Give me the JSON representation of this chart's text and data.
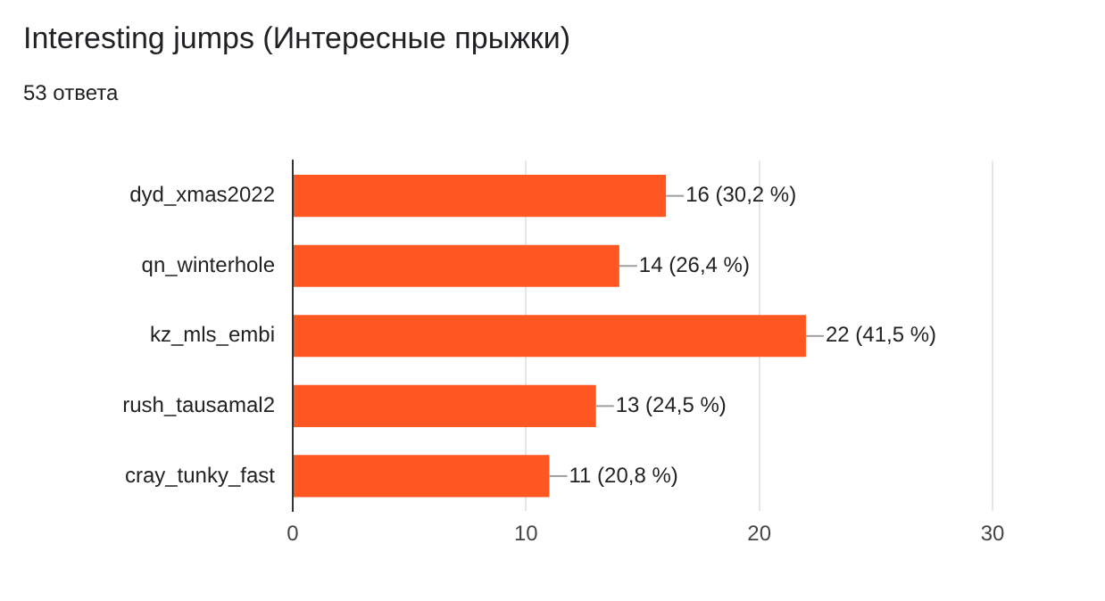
{
  "chart_data": {
    "type": "bar",
    "orientation": "horizontal",
    "title": "Interesting jumps (Интересные прыжки)",
    "subtitle": "53 ответа",
    "categories": [
      "dyd_xmas2022",
      "qn_winterhole",
      "kz_mls_embi",
      "rush_tausamal2",
      "cray_tunky_fast"
    ],
    "values": [
      16,
      14,
      22,
      13,
      11
    ],
    "value_labels": [
      "16 (30,2 %)",
      "14 (26,4 %)",
      "22 (41,5 %)",
      "13 (24,5 %)",
      "11 (20,8 %)"
    ],
    "color": "#ff5722",
    "xlim": [
      0,
      30
    ],
    "xticks": [
      0,
      10,
      20,
      30
    ],
    "grid": "x",
    "legend": false
  }
}
